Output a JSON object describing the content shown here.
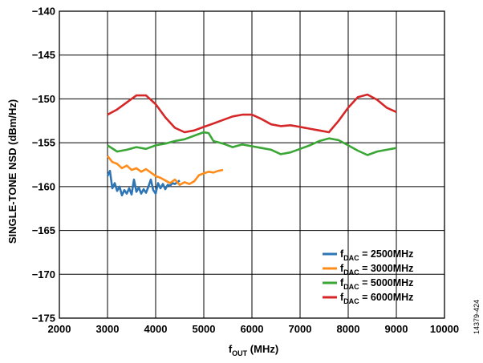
{
  "chart_data": {
    "type": "line",
    "title": "",
    "xlabel": {
      "main": "f",
      "sub": "OUT",
      "rest": " (MHz)"
    },
    "ylabel": "SINGLE-TONE NSD (dBm/Hz)",
    "xlim": [
      2000,
      10000
    ],
    "ylim": [
      -175,
      -140
    ],
    "xticks": [
      2000,
      3000,
      4000,
      5000,
      6000,
      7000,
      8000,
      9000,
      10000
    ],
    "yticks": [
      -140,
      -145,
      -150,
      -155,
      -160,
      -165,
      -170,
      -175
    ],
    "ytick_labels": [
      "−140",
      "−145",
      "−150",
      "−155",
      "−160",
      "−165",
      "−170",
      "−175"
    ],
    "grid": true,
    "legend_position": "bottom-right",
    "series": [
      {
        "legend": {
          "main": "f",
          "sub": "DAC",
          "rest": " = 2500MHz"
        },
        "color": "#2e75b6",
        "x": [
          3000,
          3050,
          3100,
          3150,
          3200,
          3250,
          3300,
          3350,
          3400,
          3450,
          3500,
          3550,
          3600,
          3650,
          3700,
          3750,
          3800,
          3850,
          3900,
          3950,
          4000,
          4050,
          4100,
          4150,
          4200,
          4250,
          4300,
          4350,
          4400,
          4450,
          4500
        ],
        "y": [
          -158.8,
          -158.2,
          -160.2,
          -159.6,
          -160.5,
          -160.0,
          -161.0,
          -160.4,
          -160.8,
          -160.2,
          -160.9,
          -159.2,
          -160.6,
          -160.1,
          -160.8,
          -160.3,
          -160.7,
          -160.0,
          -159.2,
          -160.4,
          -160.8,
          -159.6,
          -160.2,
          -159.7,
          -160.3,
          -159.8,
          -159.9,
          -159.6,
          -159.7,
          -159.5,
          -159.3
        ]
      },
      {
        "legend": {
          "main": "f",
          "sub": "DAC",
          "rest": " = 3000MHz"
        },
        "color": "#ff8c1a",
        "x": [
          3000,
          3100,
          3200,
          3300,
          3400,
          3500,
          3600,
          3700,
          3800,
          3900,
          4000,
          4100,
          4200,
          4300,
          4400,
          4500,
          4600,
          4700,
          4800,
          4900,
          5000,
          5100,
          5200,
          5300,
          5400
        ],
        "y": [
          -156.5,
          -157.2,
          -157.4,
          -157.9,
          -157.6,
          -158.1,
          -157.9,
          -158.3,
          -158.0,
          -158.4,
          -158.8,
          -159.0,
          -159.3,
          -159.6,
          -159.2,
          -159.8,
          -159.5,
          -159.7,
          -159.4,
          -158.7,
          -158.5,
          -158.3,
          -158.4,
          -158.2,
          -158.1
        ]
      },
      {
        "legend": {
          "main": "f",
          "sub": "DAC",
          "rest": " = 5000MHz"
        },
        "color": "#3aa635",
        "x": [
          3000,
          3200,
          3400,
          3600,
          3800,
          4000,
          4200,
          4400,
          4600,
          4800,
          5000,
          5100,
          5200,
          5400,
          5600,
          5800,
          6000,
          6200,
          6400,
          6600,
          6800,
          7000,
          7200,
          7400,
          7600,
          7800,
          8000,
          8200,
          8400,
          8600,
          8800,
          9000
        ],
        "y": [
          -155.3,
          -156.0,
          -155.8,
          -155.5,
          -155.7,
          -155.3,
          -155.1,
          -154.8,
          -154.6,
          -154.2,
          -153.8,
          -153.9,
          -154.8,
          -155.1,
          -155.5,
          -155.2,
          -155.4,
          -155.6,
          -155.8,
          -156.3,
          -156.1,
          -155.7,
          -155.3,
          -154.8,
          -154.5,
          -154.7,
          -155.3,
          -155.9,
          -156.4,
          -156.0,
          -155.8,
          -155.6
        ]
      },
      {
        "legend": {
          "main": "f",
          "sub": "DAC",
          "rest": " = 6000MHz"
        },
        "color": "#d62728",
        "x": [
          3000,
          3200,
          3400,
          3600,
          3800,
          4000,
          4200,
          4400,
          4600,
          4800,
          5000,
          5200,
          5400,
          5600,
          5800,
          6000,
          6200,
          6400,
          6600,
          6800,
          7000,
          7200,
          7400,
          7600,
          7800,
          8000,
          8200,
          8400,
          8600,
          8800,
          9000
        ],
        "y": [
          -151.8,
          -151.2,
          -150.4,
          -149.6,
          -149.6,
          -150.6,
          -152.1,
          -153.3,
          -153.8,
          -153.6,
          -153.2,
          -152.8,
          -152.4,
          -152.0,
          -151.8,
          -151.8,
          -152.3,
          -152.9,
          -153.1,
          -153.0,
          -153.2,
          -153.4,
          -153.6,
          -153.8,
          -152.5,
          -151.0,
          -149.8,
          -149.5,
          -150.1,
          -151.0,
          -151.5
        ]
      }
    ]
  },
  "figure_id": "14379-424"
}
